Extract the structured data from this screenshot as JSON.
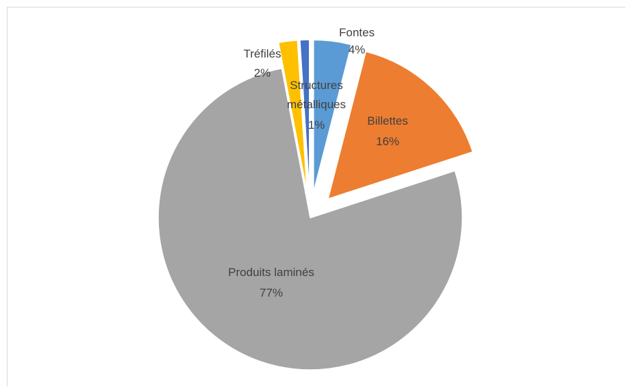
{
  "chart_data": {
    "type": "pie",
    "title": "",
    "start_angle_deg": 0,
    "direction": "clockwise",
    "slices": [
      {
        "label": "Fontes",
        "value": 4,
        "value_label": "4%",
        "color": "#5b9bd5",
        "exploded": true
      },
      {
        "label": "Billettes",
        "value": 16,
        "value_label": "16%",
        "color": "#ed7d31",
        "exploded": true
      },
      {
        "label": "Produits laminés",
        "value": 77,
        "value_label": "77%",
        "color": "#a5a5a5",
        "exploded": false
      },
      {
        "label": "Tréfilés",
        "value": 2,
        "value_label": "2%",
        "color": "#ffc000",
        "exploded": true
      },
      {
        "label": "Structures métalliques",
        "value": 1,
        "value_label": "1%",
        "color": "#4472c4",
        "exploded": true
      }
    ]
  }
}
